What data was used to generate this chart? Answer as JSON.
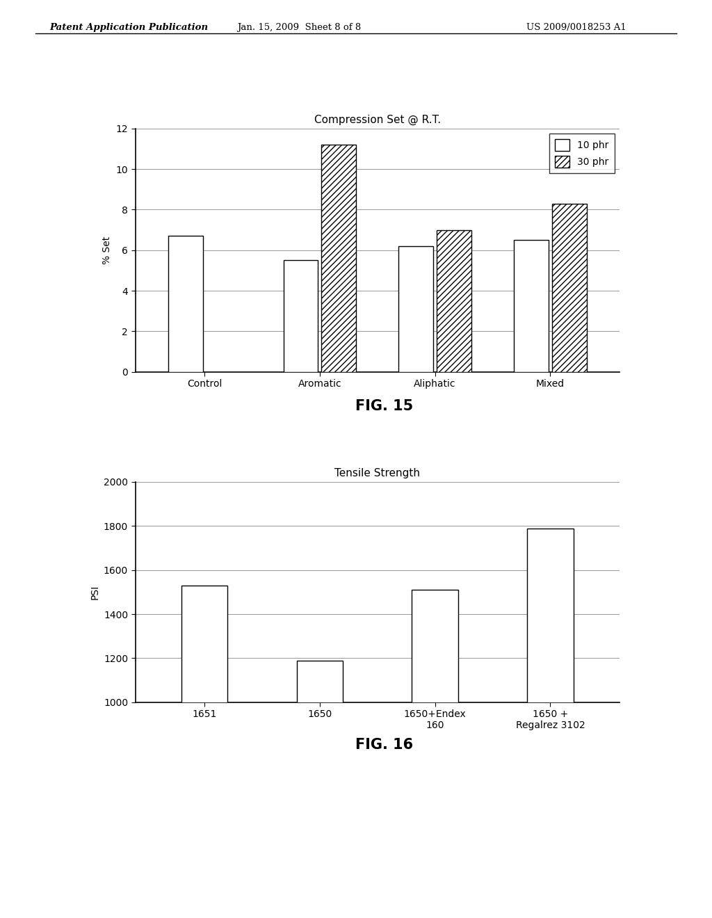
{
  "fig15": {
    "title": "Compression Set @ R.T.",
    "ylabel": "% Set",
    "categories": [
      "Control",
      "Aromatic",
      "Aliphatic",
      "Mixed"
    ],
    "series_10phr": [
      6.7,
      5.5,
      6.2,
      6.5
    ],
    "series_30phr": [
      null,
      11.2,
      7.0,
      8.3
    ],
    "ylim": [
      0,
      12
    ],
    "yticks": [
      0,
      2,
      4,
      6,
      8,
      10,
      12
    ],
    "legend_labels": [
      "10 phr",
      "30 phr"
    ],
    "fignum": "FIG. 15"
  },
  "fig16": {
    "title": "Tensile Strength",
    "ylabel": "PSI",
    "categories": [
      "1651",
      "1650",
      "1650+Endex\n160",
      "1650 +\nRegalrez 3102"
    ],
    "values": [
      1530,
      1190,
      1510,
      1790
    ],
    "ylim": [
      1000,
      2000
    ],
    "yticks": [
      1000,
      1200,
      1400,
      1600,
      1800,
      2000
    ],
    "fignum": "FIG. 16"
  },
  "header_left": "Patent Application Publication",
  "header_center": "Jan. 15, 2009  Sheet 8 of 8",
  "header_right": "US 2009/0018253 A1",
  "bg_color": "#ffffff",
  "bar_edge_color": "#000000",
  "text_color": "#000000"
}
